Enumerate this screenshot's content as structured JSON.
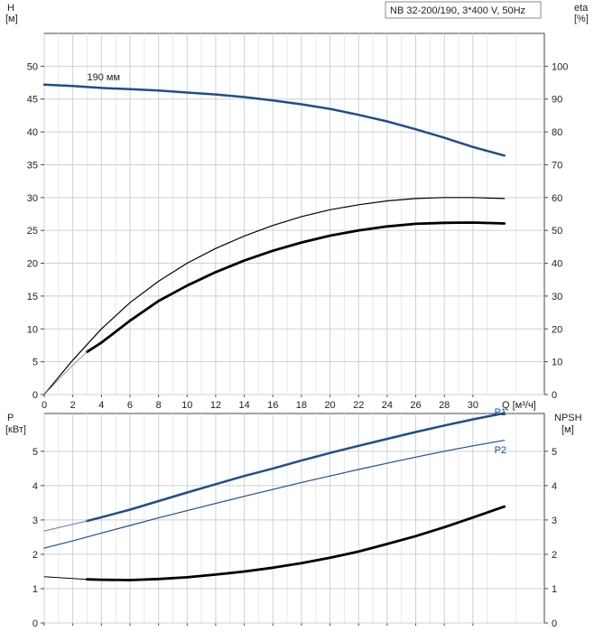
{
  "chart_data": [
    {
      "type": "line",
      "title": "NB 32-200/190, 3*400 V, 50Hz",
      "left_axis": {
        "label_top": "H",
        "label_unit": "[м]",
        "ticks": [
          0,
          5,
          10,
          15,
          20,
          25,
          30,
          35,
          40,
          45,
          50
        ],
        "ylim": [
          0,
          55
        ]
      },
      "right_axis": {
        "label_top": "eta",
        "label_unit": "[%]",
        "ticks": [
          0,
          10,
          20,
          30,
          40,
          50,
          60,
          70,
          80,
          90,
          100
        ],
        "ylim": [
          0,
          110
        ]
      },
      "x_axis": {
        "label": "Q [м³/ч]",
        "ticks": [
          0,
          2,
          4,
          6,
          8,
          10,
          12,
          14,
          16,
          18,
          20,
          22,
          24,
          26,
          28,
          30
        ],
        "xlim": [
          0,
          35
        ]
      },
      "grid": true,
      "annotations": [
        {
          "text": "190 мм",
          "x": 3.0,
          "y": 47.6
        }
      ],
      "series": [
        {
          "key": "head",
          "axis": "left",
          "color": "#1f4e8c",
          "width": 2.5,
          "x": [
            0,
            2,
            4,
            6,
            8,
            10,
            12,
            14,
            16,
            18,
            20,
            22,
            24,
            26,
            28,
            30,
            32.2
          ],
          "y": [
            47.2,
            47.0,
            46.7,
            46.5,
            46.3,
            46.0,
            45.7,
            45.3,
            44.8,
            44.2,
            43.5,
            42.6,
            41.6,
            40.4,
            39.1,
            37.7,
            36.4
          ]
        },
        {
          "key": "eta_line",
          "axis": "right",
          "color": "#000000",
          "width": 1.2,
          "x": [
            0,
            2,
            4,
            6,
            8,
            10,
            12,
            14,
            16,
            18,
            20,
            22,
            24,
            26,
            28,
            30,
            32.2
          ],
          "y": [
            0,
            10.5,
            20,
            28,
            34.5,
            40,
            44.5,
            48.3,
            51.5,
            54.2,
            56.3,
            57.8,
            59.0,
            59.7,
            60.0,
            60.0,
            59.7
          ]
        },
        {
          "key": "eta_bold",
          "axis": "right",
          "color": "#000000",
          "width": 2.8,
          "x": [
            3,
            4,
            6,
            8,
            10,
            12,
            14,
            16,
            18,
            20,
            22,
            24,
            26,
            28,
            30,
            32.2
          ],
          "y": [
            13.0,
            15.8,
            22.5,
            28.5,
            33.2,
            37.3,
            40.8,
            43.8,
            46.3,
            48.4,
            50.0,
            51.2,
            52.0,
            52.3,
            52.4,
            52.1
          ]
        },
        {
          "key": "eta_thin_start",
          "axis": "right",
          "color": "#888888",
          "width": 0.8,
          "x": [
            0,
            1,
            2,
            3
          ],
          "y": [
            0,
            4.5,
            9.0,
            13.0
          ]
        }
      ]
    },
    {
      "type": "line",
      "left_axis": {
        "label_top": "P",
        "label_unit": "[кВт]",
        "ticks": [
          0,
          1,
          2,
          3,
          4,
          5
        ],
        "ylim": [
          0,
          6.1
        ]
      },
      "right_axis": {
        "label_top": "NPSH",
        "label_unit": "[м]",
        "ticks": [
          0,
          1,
          2,
          3,
          4,
          5
        ],
        "ylim": [
          0,
          6.1
        ]
      },
      "x_axis": {
        "ticks": [
          0,
          2,
          4,
          6,
          8,
          10,
          12,
          14,
          16,
          18,
          20,
          22,
          24,
          26,
          28,
          30
        ],
        "xlim": [
          0,
          35
        ]
      },
      "grid": true,
      "series": [
        {
          "name": "P1",
          "axis": "left",
          "color": "#1f4e8c",
          "width": 2.5,
          "x": [
            3,
            4,
            6,
            8,
            10,
            12,
            14,
            16,
            18,
            20,
            22,
            24,
            26,
            28,
            30,
            32.2
          ],
          "y": [
            2.97,
            3.08,
            3.3,
            3.55,
            3.8,
            4.04,
            4.28,
            4.5,
            4.73,
            4.95,
            5.16,
            5.36,
            5.56,
            5.75,
            5.93,
            6.11
          ]
        },
        {
          "name": "P1_ext",
          "axis": "left",
          "color": "#5a7fb5",
          "width": 1.0,
          "x": [
            0,
            3
          ],
          "y": [
            2.68,
            2.97
          ]
        },
        {
          "name": "P2",
          "axis": "left",
          "color": "#1f4e8c",
          "width": 1.2,
          "x": [
            0,
            2,
            4,
            6,
            8,
            10,
            12,
            14,
            16,
            18,
            20,
            22,
            24,
            26,
            28,
            30,
            32.2
          ],
          "y": [
            2.18,
            2.39,
            2.62,
            2.84,
            3.06,
            3.27,
            3.48,
            3.69,
            3.89,
            4.09,
            4.28,
            4.47,
            4.65,
            4.83,
            5.0,
            5.16,
            5.32
          ]
        },
        {
          "name": "NPSH",
          "axis": "right",
          "color": "#000000",
          "width": 2.8,
          "x": [
            3,
            4,
            6,
            8,
            10,
            12,
            14,
            16,
            18,
            20,
            22,
            24,
            26,
            28,
            30,
            32.2
          ],
          "y": [
            1.27,
            1.26,
            1.25,
            1.28,
            1.33,
            1.41,
            1.5,
            1.61,
            1.74,
            1.9,
            2.08,
            2.3,
            2.53,
            2.79,
            3.07,
            3.39
          ]
        },
        {
          "name": "NPSH_ext",
          "axis": "right",
          "color": "#000000",
          "width": 1.0,
          "x": [
            0,
            3
          ],
          "y": [
            1.35,
            1.27
          ]
        }
      ],
      "legend_labels": [
        {
          "text": "P1",
          "x": 31.5,
          "y": 6.15
        },
        {
          "text": "P2",
          "x": 31.5,
          "y": 5.05
        }
      ]
    }
  ]
}
